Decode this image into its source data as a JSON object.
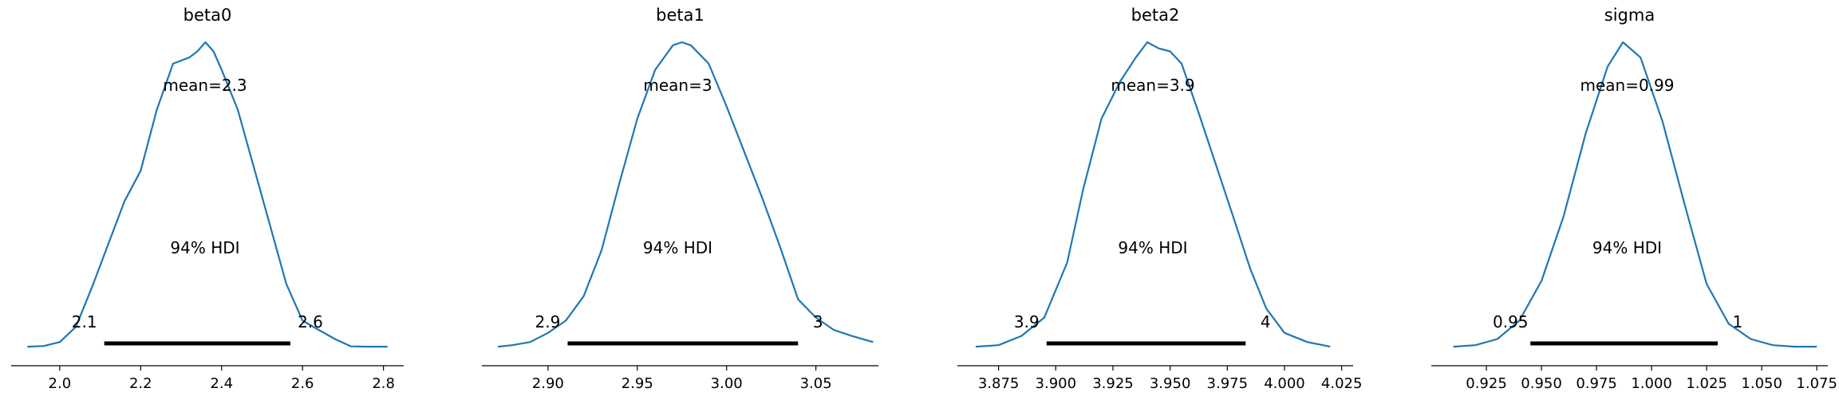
{
  "chart_data": [
    {
      "type": "line",
      "title": "beta0",
      "mean_label": "mean=2.3",
      "hdi_label": "94% HDI",
      "hdi": [
        2.11,
        2.57
      ],
      "hdi_labels": [
        "2.1",
        "2.6"
      ],
      "xlim": [
        1.88,
        2.85
      ],
      "xticks": [
        2.0,
        2.2,
        2.4,
        2.6,
        2.8
      ],
      "xtick_labels": [
        "2.0",
        "2.2",
        "2.4",
        "2.6",
        "2.8"
      ],
      "color": "#1f77b4",
      "x": [
        1.92,
        1.96,
        2.0,
        2.04,
        2.08,
        2.12,
        2.16,
        2.2,
        2.24,
        2.28,
        2.32,
        2.34,
        2.36,
        2.38,
        2.4,
        2.44,
        2.48,
        2.52,
        2.56,
        2.6,
        2.64,
        2.68,
        2.72,
        2.76,
        2.81
      ],
      "y": [
        0.005,
        0.007,
        0.02,
        0.07,
        0.2,
        0.34,
        0.48,
        0.58,
        0.78,
        0.93,
        0.95,
        0.97,
        1.0,
        0.97,
        0.91,
        0.78,
        0.59,
        0.4,
        0.21,
        0.09,
        0.06,
        0.03,
        0.006,
        0.005,
        0.005
      ]
    },
    {
      "type": "line",
      "title": "beta1",
      "mean_label": "mean=3",
      "hdi_label": "94% HDI",
      "hdi": [
        2.911,
        3.04
      ],
      "hdi_labels": [
        "2.9",
        "3"
      ],
      "xlim": [
        2.863,
        3.085
      ],
      "xticks": [
        2.9,
        2.95,
        3.0,
        3.05
      ],
      "xtick_labels": [
        "2.90",
        "2.95",
        "3.00",
        "3.05"
      ],
      "color": "#1f77b4",
      "x": [
        2.872,
        2.88,
        2.89,
        2.9,
        2.91,
        2.92,
        2.93,
        2.94,
        2.95,
        2.96,
        2.97,
        2.975,
        2.98,
        2.99,
        3.0,
        3.01,
        3.02,
        3.03,
        3.04,
        3.05,
        3.06,
        3.07,
        3.082
      ],
      "y": [
        0.005,
        0.01,
        0.02,
        0.05,
        0.09,
        0.17,
        0.32,
        0.54,
        0.75,
        0.91,
        0.99,
        1.0,
        0.99,
        0.93,
        0.79,
        0.64,
        0.49,
        0.33,
        0.16,
        0.1,
        0.06,
        0.04,
        0.02
      ]
    },
    {
      "type": "line",
      "title": "beta2",
      "mean_label": "mean=3.9",
      "hdi_label": "94% HDI",
      "hdi": [
        3.896,
        3.983
      ],
      "hdi_labels": [
        "3.9",
        "4"
      ],
      "xlim": [
        3.857,
        4.03
      ],
      "xticks": [
        3.875,
        3.9,
        3.925,
        3.95,
        3.975,
        4.0,
        4.025
      ],
      "xtick_labels": [
        "3.875",
        "3.900",
        "3.925",
        "3.950",
        "3.975",
        "4.000",
        "4.025"
      ],
      "color": "#1f77b4",
      "x": [
        3.865,
        3.875,
        3.885,
        3.895,
        3.905,
        3.912,
        3.92,
        3.928,
        3.935,
        3.94,
        3.945,
        3.95,
        3.955,
        3.962,
        3.97,
        3.978,
        3.985,
        3.992,
        4.0,
        4.01,
        4.02
      ],
      "y": [
        0.005,
        0.01,
        0.04,
        0.1,
        0.28,
        0.52,
        0.75,
        0.87,
        0.95,
        1.0,
        0.98,
        0.97,
        0.93,
        0.78,
        0.6,
        0.42,
        0.26,
        0.13,
        0.05,
        0.02,
        0.005
      ]
    },
    {
      "type": "line",
      "title": "sigma",
      "mean_label": "mean=0.99",
      "hdi_label": "94% HDI",
      "hdi": [
        0.945,
        1.03
      ],
      "hdi_labels": [
        "0.95",
        "1"
      ],
      "xlim": [
        0.9,
        1.08
      ],
      "xticks": [
        0.925,
        0.95,
        0.975,
        1.0,
        1.025,
        1.05,
        1.075
      ],
      "xtick_labels": [
        "0.925",
        "0.950",
        "0.975",
        "1.000",
        "1.025",
        "1.050",
        "1.075"
      ],
      "color": "#1f77b4",
      "x": [
        0.91,
        0.92,
        0.93,
        0.94,
        0.95,
        0.96,
        0.97,
        0.98,
        0.987,
        0.995,
        1.005,
        1.015,
        1.025,
        1.035,
        1.045,
        1.055,
        1.065,
        1.075
      ],
      "y": [
        0.005,
        0.01,
        0.03,
        0.09,
        0.22,
        0.43,
        0.7,
        0.92,
        1.0,
        0.95,
        0.74,
        0.47,
        0.21,
        0.08,
        0.03,
        0.01,
        0.005,
        0.005
      ]
    }
  ]
}
